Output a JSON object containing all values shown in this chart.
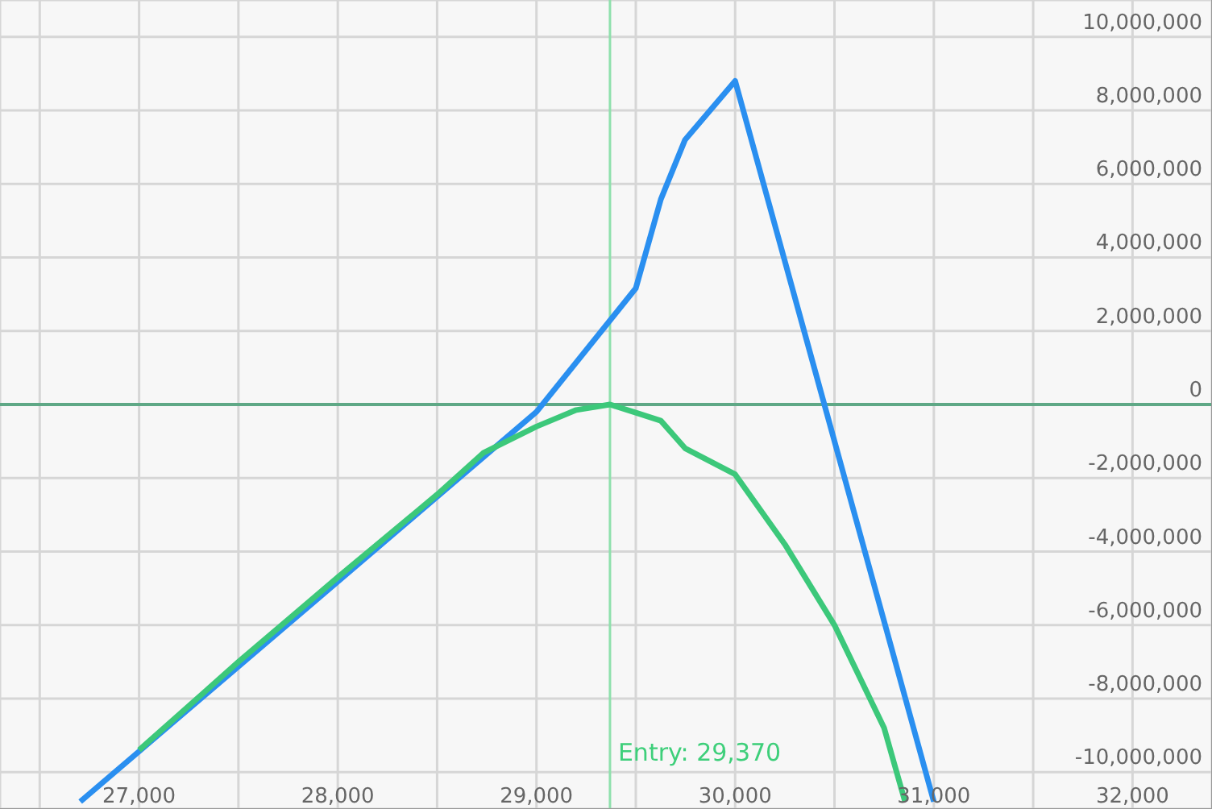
{
  "chart_data": {
    "type": "line",
    "series": [
      {
        "color": "#2a8ff0",
        "x": [
          26704,
          29000,
          29500,
          29626,
          29748,
          30000,
          31000
        ],
        "values": [
          -10800000,
          -200000,
          3160000,
          5580000,
          7200000,
          8800000,
          -10800000
        ]
      },
      {
        "color": "#3cc87a",
        "x": [
          27000,
          27500,
          28000,
          28500,
          28732,
          29000,
          29200,
          29370,
          29500,
          29626,
          29748,
          30000,
          30250,
          30500,
          30750,
          30855
        ],
        "values": [
          -9400000,
          -7000000,
          -4700000,
          -2450000,
          -1320000,
          -600000,
          -150000,
          0,
          -220000,
          -440000,
          -1190000,
          -1900000,
          -3800000,
          -6000000,
          -8800000,
          -10800000
        ]
      }
    ],
    "xlim": [
      26300,
      32400
    ],
    "xticks": [
      {
        "value": 26500,
        "label": null
      },
      {
        "value": 27000,
        "label": "27,000"
      },
      {
        "value": 27500,
        "label": null
      },
      {
        "value": 28000,
        "label": "28,000"
      },
      {
        "value": 28500,
        "label": null
      },
      {
        "value": 29000,
        "label": "29,000"
      },
      {
        "value": 29500,
        "label": null
      },
      {
        "value": 30000,
        "label": "30,000"
      },
      {
        "value": 30500,
        "label": null
      },
      {
        "value": 31000,
        "label": "31,000"
      },
      {
        "value": 31500,
        "label": null
      },
      {
        "value": 32000,
        "label": "32,000"
      }
    ],
    "ylim": [
      -11000000,
      11000000
    ],
    "yticks": [
      {
        "value": -10000000,
        "label": "-10,000,000"
      },
      {
        "value": -8000000,
        "label": "-8,000,000"
      },
      {
        "value": -6000000,
        "label": "-6,000,000"
      },
      {
        "value": -4000000,
        "label": "-4,000,000"
      },
      {
        "value": -2000000,
        "label": "-2,000,000"
      },
      0,
      {
        "value": 2000000,
        "label": "2,000,000"
      },
      {
        "value": 4000000,
        "label": "4,000,000"
      },
      {
        "value": 6000000,
        "label": "6,000,000"
      },
      {
        "value": 8000000,
        "label": "8,000,000"
      },
      {
        "value": 10000000,
        "label": "10,000,000"
      }
    ],
    "ref_lines": [
      {
        "axis": "y",
        "value": 0,
        "label": null,
        "color": "#5fa886"
      },
      {
        "axis": "x",
        "value": 29370,
        "label": "Entry: 29,370",
        "color": "#8fe0ac"
      }
    ],
    "grid": true,
    "marker": "none",
    "line_style": "solid"
  }
}
